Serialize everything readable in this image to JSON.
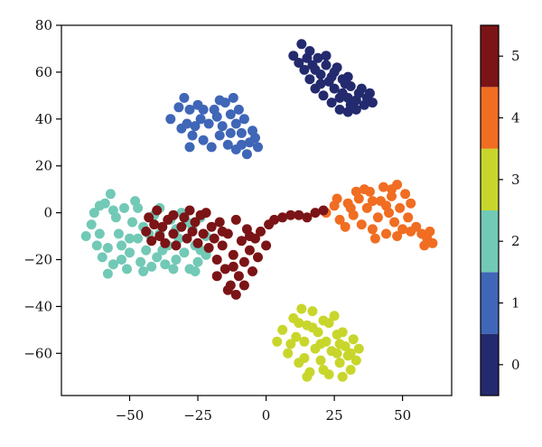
{
  "chart_data": {
    "type": "scatter",
    "title": "",
    "xlabel": "",
    "ylabel": "",
    "xlim": [
      -75,
      68
    ],
    "ylim": [
      -78,
      80
    ],
    "xticks": [
      -50,
      -25,
      0,
      25,
      50
    ],
    "yticks": [
      -60,
      -40,
      -20,
      0,
      20,
      40,
      60,
      80
    ],
    "grid": false,
    "colorbar": {
      "range": [
        -0.5,
        5.5
      ],
      "ticks": [
        0,
        1,
        2,
        3,
        4,
        5
      ],
      "colors": [
        "#242a6e",
        "#3f66b7",
        "#72c9b6",
        "#c8d62c",
        "#f06d22",
        "#7b1416"
      ]
    },
    "clusters": [
      {
        "label": 0,
        "points": [
          [
            10,
            67
          ],
          [
            13,
            72
          ],
          [
            16,
            69
          ],
          [
            19,
            66
          ],
          [
            22,
            63
          ],
          [
            25,
            60
          ],
          [
            28,
            57
          ],
          [
            31,
            54
          ],
          [
            34,
            51
          ],
          [
            37,
            49
          ],
          [
            39,
            47
          ],
          [
            36,
            46
          ],
          [
            33,
            44
          ],
          [
            30,
            43
          ],
          [
            27,
            44
          ],
          [
            24,
            47
          ],
          [
            21,
            50
          ],
          [
            18,
            53
          ],
          [
            16,
            57
          ],
          [
            14,
            61
          ],
          [
            12,
            64
          ],
          [
            20,
            59
          ],
          [
            25,
            53
          ],
          [
            30,
            49
          ],
          [
            17,
            63
          ],
          [
            23,
            56
          ],
          [
            28,
            51
          ],
          [
            33,
            48
          ],
          [
            35,
            53
          ],
          [
            30,
            58
          ],
          [
            26,
            62
          ],
          [
            22,
            67
          ],
          [
            18,
            61
          ],
          [
            31,
            46
          ],
          [
            27,
            49
          ],
          [
            20,
            55
          ],
          [
            38,
            51
          ],
          [
            15,
            66
          ],
          [
            24,
            58
          ],
          [
            29,
            55
          ]
        ]
      },
      {
        "label": 1,
        "points": [
          [
            -35,
            40
          ],
          [
            -32,
            45
          ],
          [
            -30,
            49
          ],
          [
            -28,
            44
          ],
          [
            -31,
            36
          ],
          [
            -27,
            33
          ],
          [
            -28,
            28
          ],
          [
            -23,
            31
          ],
          [
            -21,
            38
          ],
          [
            -19,
            44
          ],
          [
            -17,
            48
          ],
          [
            -15,
            47
          ],
          [
            -13,
            42
          ],
          [
            -11,
            38
          ],
          [
            -9,
            34
          ],
          [
            -6,
            30
          ],
          [
            -3,
            28
          ],
          [
            -5,
            35
          ],
          [
            -8,
            40
          ],
          [
            -10,
            44
          ],
          [
            -12,
            49
          ],
          [
            -17,
            33
          ],
          [
            -14,
            29
          ],
          [
            -11,
            27
          ],
          [
            -7,
            25
          ],
          [
            -24,
            40
          ],
          [
            -26,
            37
          ],
          [
            -20,
            28
          ],
          [
            -16,
            37
          ],
          [
            -13,
            34
          ],
          [
            -23,
            44
          ],
          [
            -9,
            29
          ],
          [
            -29,
            38
          ],
          [
            -18,
            41
          ],
          [
            -4,
            32
          ],
          [
            -25,
            46
          ]
        ]
      },
      {
        "label": 2,
        "points": [
          [
            -66,
            -10
          ],
          [
            -64,
            -5
          ],
          [
            -63,
            0
          ],
          [
            -62,
            -14
          ],
          [
            -60,
            -19
          ],
          [
            -59,
            4
          ],
          [
            -57,
            8
          ],
          [
            -56,
            -22
          ],
          [
            -55,
            -2
          ],
          [
            -54,
            -9
          ],
          [
            -53,
            -14
          ],
          [
            -52,
            2
          ],
          [
            -51,
            -24
          ],
          [
            -50,
            -17
          ],
          [
            -49,
            -4
          ],
          [
            -48,
            5
          ],
          [
            -47,
            -11
          ],
          [
            -46,
            -21
          ],
          [
            -45,
            -6
          ],
          [
            -44,
            -16
          ],
          [
            -42,
            -23
          ],
          [
            -41,
            -1
          ],
          [
            -40,
            -19
          ],
          [
            -39,
            -9
          ],
          [
            -37,
            -22
          ],
          [
            -36,
            -14
          ],
          [
            -35,
            -3
          ],
          [
            -33,
            -20
          ],
          [
            -32,
            -11
          ],
          [
            -31,
            0
          ],
          [
            -30,
            -17
          ],
          [
            -28,
            -24
          ],
          [
            -27,
            -7
          ],
          [
            -26,
            -14
          ],
          [
            -25,
            -21
          ],
          [
            -24,
            -2
          ],
          [
            -22,
            -10
          ],
          [
            -22,
            -18
          ],
          [
            -61,
            -9
          ],
          [
            -58,
            -15
          ],
          [
            -56,
            1
          ],
          [
            -53,
            -20
          ],
          [
            -47,
            2
          ],
          [
            -43,
            -9
          ],
          [
            -38,
            -16
          ],
          [
            -34,
            -24
          ],
          [
            -29,
            -4
          ],
          [
            -24,
            -16
          ],
          [
            -26,
            -25
          ],
          [
            -33,
            -7
          ],
          [
            -39,
            2
          ],
          [
            -61,
            3
          ],
          [
            -58,
            -26
          ],
          [
            -45,
            -25
          ],
          [
            -50,
            -11
          ]
        ]
      },
      {
        "label": 4,
        "points": [
          [
            22,
            0
          ],
          [
            25,
            3
          ],
          [
            27,
            -3
          ],
          [
            30,
            4
          ],
          [
            32,
            -1
          ],
          [
            34,
            6
          ],
          [
            35,
            -5
          ],
          [
            37,
            2
          ],
          [
            38,
            9
          ],
          [
            39,
            -7
          ],
          [
            41,
            -2
          ],
          [
            42,
            5
          ],
          [
            43,
            11
          ],
          [
            44,
            -9
          ],
          [
            45,
            0
          ],
          [
            46,
            7
          ],
          [
            47,
            -4
          ],
          [
            48,
            12
          ],
          [
            49,
            2
          ],
          [
            50,
            -7
          ],
          [
            51,
            8
          ],
          [
            52,
            -2
          ],
          [
            53,
            4
          ],
          [
            55,
            -6
          ],
          [
            57,
            -9
          ],
          [
            59,
            -11
          ],
          [
            61,
            -13
          ],
          [
            60,
            -8
          ],
          [
            58,
            -14
          ],
          [
            36,
            10
          ],
          [
            29,
            -6
          ],
          [
            33,
            9
          ],
          [
            40,
            -11
          ],
          [
            44,
            3
          ],
          [
            48,
            -10
          ],
          [
            53,
            -8
          ],
          [
            46,
            10
          ],
          [
            31,
            2
          ],
          [
            26,
            6
          ],
          [
            39,
            5
          ]
        ]
      },
      {
        "label": 3,
        "points": [
          [
            4,
            -55
          ],
          [
            6,
            -50
          ],
          [
            8,
            -60
          ],
          [
            10,
            -45
          ],
          [
            12,
            -64
          ],
          [
            13,
            -41
          ],
          [
            14,
            -55
          ],
          [
            15,
            -48
          ],
          [
            16,
            -68
          ],
          [
            17,
            -42
          ],
          [
            18,
            -58
          ],
          [
            19,
            -51
          ],
          [
            20,
            -63
          ],
          [
            21,
            -46
          ],
          [
            22,
            -55
          ],
          [
            23,
            -69
          ],
          [
            24,
            -59
          ],
          [
            25,
            -44
          ],
          [
            26,
            -52
          ],
          [
            27,
            -64
          ],
          [
            28,
            -70
          ],
          [
            29,
            -57
          ],
          [
            30,
            -61
          ],
          [
            31,
            -67
          ],
          [
            32,
            -54
          ],
          [
            33,
            -63
          ],
          [
            34,
            -58
          ],
          [
            11,
            -53
          ],
          [
            14,
            -62
          ],
          [
            17,
            -49
          ],
          [
            20,
            -56
          ],
          [
            23,
            -47
          ],
          [
            26,
            -60
          ],
          [
            28,
            -51
          ],
          [
            9,
            -56
          ],
          [
            15,
            -70
          ],
          [
            21,
            -67
          ],
          [
            27,
            -56
          ],
          [
            31,
            -60
          ],
          [
            12,
            -47
          ]
        ]
      },
      {
        "label": 5,
        "points": [
          [
            -44,
            -8
          ],
          [
            -43,
            -2
          ],
          [
            -42,
            -12
          ],
          [
            -41,
            -5
          ],
          [
            -40,
            1
          ],
          [
            -39,
            -10
          ],
          [
            -38,
            -6
          ],
          [
            -37,
            -13
          ],
          [
            -36,
            -3
          ],
          [
            -34,
            -9
          ],
          [
            -33,
            -14
          ],
          [
            -31,
            -6
          ],
          [
            -30,
            -2
          ],
          [
            -29,
            -11
          ],
          [
            -27,
            -8
          ],
          [
            -26,
            -4
          ],
          [
            -25,
            -13
          ],
          [
            -23,
            -9
          ],
          [
            -22,
            0
          ],
          [
            -21,
            -15
          ],
          [
            -20,
            -6
          ],
          [
            -19,
            -11
          ],
          [
            -18,
            -20
          ],
          [
            -17,
            -4
          ],
          [
            -16,
            -14
          ],
          [
            -15,
            -24
          ],
          [
            -14,
            -9
          ],
          [
            -13,
            -31
          ],
          [
            -12,
            -18
          ],
          [
            -11,
            -3
          ],
          [
            -10,
            -27
          ],
          [
            -9,
            -12
          ],
          [
            -8,
            -21
          ],
          [
            -7,
            -7
          ],
          [
            -6,
            -16
          ],
          [
            -5,
            -25
          ],
          [
            -4,
            -11
          ],
          [
            -3,
            -19
          ],
          [
            -2,
            -8
          ],
          [
            0,
            -14
          ],
          [
            1,
            -5
          ],
          [
            3,
            -3
          ],
          [
            6,
            -2
          ],
          [
            9,
            -1
          ],
          [
            12,
            -1
          ],
          [
            15,
            -2
          ],
          [
            18,
            0
          ],
          [
            21,
            1
          ],
          [
            -28,
            1
          ],
          [
            -18,
            -27
          ],
          [
            -14,
            -33
          ],
          [
            -11,
            -35
          ],
          [
            -8,
            -31
          ],
          [
            -24,
            -1
          ],
          [
            -34,
            -1
          ],
          [
            -12,
            -23
          ],
          [
            -6,
            -10
          ],
          [
            -16,
            -8
          ]
        ]
      }
    ]
  }
}
